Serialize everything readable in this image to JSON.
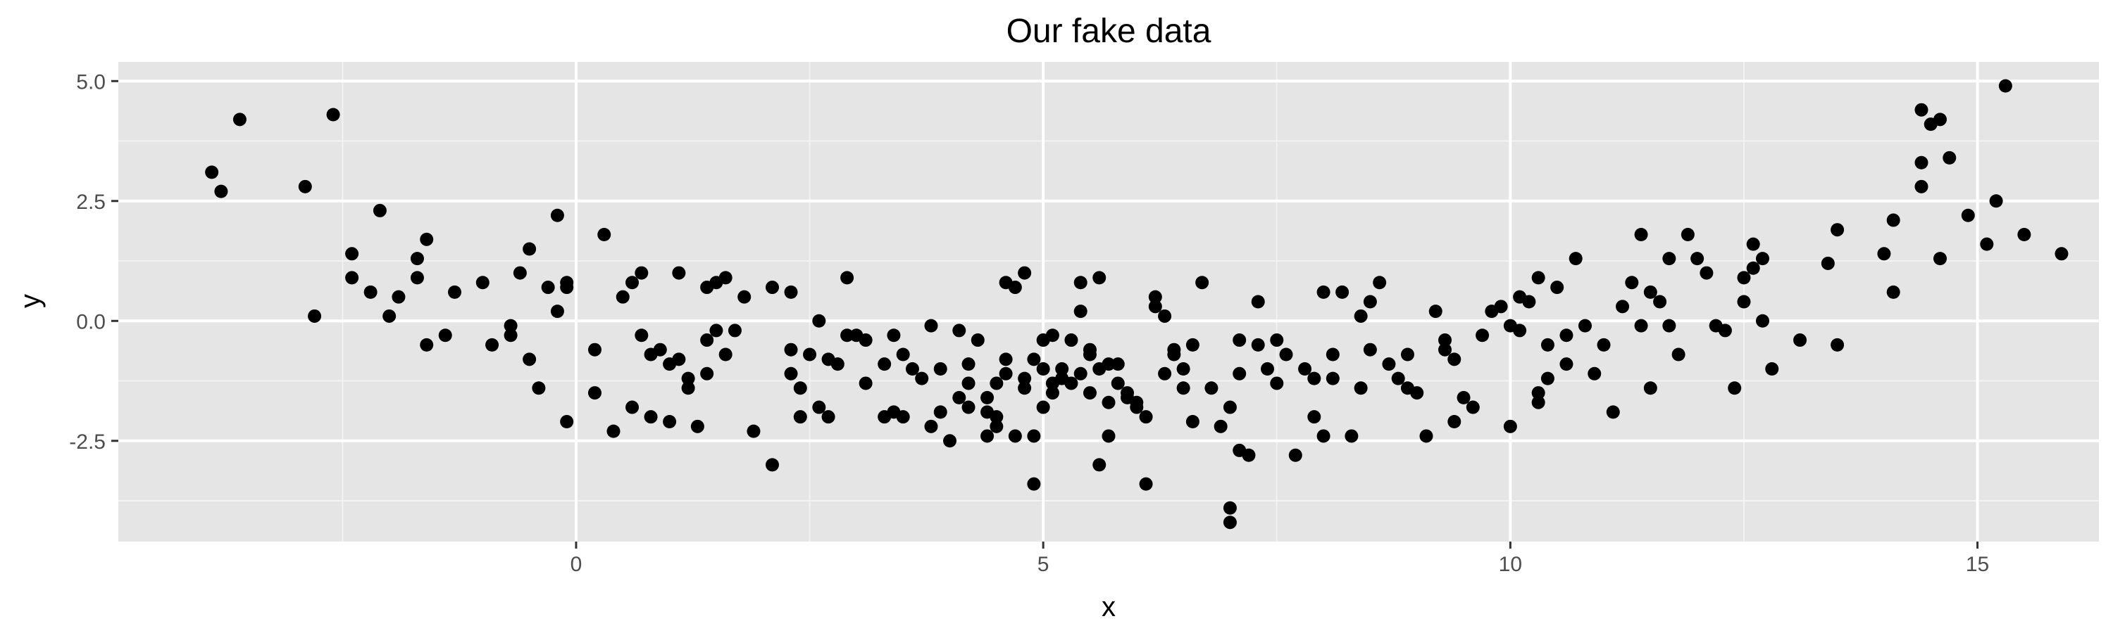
{
  "chart_data": {
    "type": "scatter",
    "title": "Our fake data",
    "xlabel": "x",
    "ylabel": "y",
    "xlim": [
      -4.9,
      16.3
    ],
    "ylim": [
      -4.6,
      5.4
    ],
    "x_major_ticks": [
      0,
      5,
      10,
      15
    ],
    "x_minor_ticks": [
      -2.5,
      2.5,
      7.5,
      12.5
    ],
    "y_major_ticks": [
      -2.5,
      0,
      2.5,
      5
    ],
    "y_minor_ticks": [
      -3.75,
      -1.25,
      1.25,
      3.75
    ],
    "x_tick_labels": [
      "0",
      "5",
      "10",
      "15"
    ],
    "y_tick_labels": [
      "-2.5",
      "0.0",
      "2.5",
      "5.0"
    ],
    "grid": true,
    "background_color": "#e5e5e5",
    "point_color": "#000000",
    "series": [
      {
        "points": [
          [
            -3.9,
            3.1
          ],
          [
            -3.8,
            2.7
          ],
          [
            -3.6,
            4.2
          ],
          [
            -2.9,
            2.8
          ],
          [
            -2.8,
            0.1
          ],
          [
            -2.6,
            4.3
          ],
          [
            -2.4,
            1.4
          ],
          [
            -2.4,
            0.9
          ],
          [
            -2.2,
            0.6
          ],
          [
            -2.1,
            2.3
          ],
          [
            -2.0,
            0.1
          ],
          [
            -1.9,
            0.5
          ],
          [
            -1.7,
            0.9
          ],
          [
            -1.7,
            1.3
          ],
          [
            -1.6,
            1.7
          ],
          [
            -1.6,
            -0.5
          ],
          [
            -1.4,
            -0.3
          ],
          [
            -1.3,
            0.6
          ],
          [
            -1.0,
            0.8
          ],
          [
            -0.9,
            -0.5
          ],
          [
            -0.7,
            -0.1
          ],
          [
            -0.7,
            -0.3
          ],
          [
            -0.6,
            1.0
          ],
          [
            -0.5,
            1.5
          ],
          [
            -0.5,
            -0.8
          ],
          [
            -0.4,
            -1.4
          ],
          [
            -0.3,
            0.7
          ],
          [
            -0.2,
            0.2
          ],
          [
            -0.2,
            2.2
          ],
          [
            -0.1,
            -2.1
          ],
          [
            -0.1,
            0.8
          ],
          [
            -0.1,
            0.7
          ],
          [
            0.2,
            -0.6
          ],
          [
            0.2,
            -1.5
          ],
          [
            0.3,
            1.8
          ],
          [
            0.4,
            -2.3
          ],
          [
            0.5,
            0.5
          ],
          [
            0.6,
            0.8
          ],
          [
            0.6,
            -1.8
          ],
          [
            0.7,
            1.0
          ],
          [
            0.7,
            -0.3
          ],
          [
            0.8,
            -0.7
          ],
          [
            0.8,
            -2.0
          ],
          [
            0.9,
            -0.6
          ],
          [
            1.0,
            -0.9
          ],
          [
            1.0,
            -2.1
          ],
          [
            1.1,
            -0.8
          ],
          [
            1.1,
            1.0
          ],
          [
            1.2,
            -1.2
          ],
          [
            1.2,
            -1.4
          ],
          [
            1.3,
            -2.2
          ],
          [
            1.4,
            0.7
          ],
          [
            1.4,
            -1.1
          ],
          [
            1.4,
            -0.4
          ],
          [
            1.5,
            0.8
          ],
          [
            1.5,
            -0.2
          ],
          [
            1.6,
            0.9
          ],
          [
            1.6,
            -0.7
          ],
          [
            1.7,
            -0.2
          ],
          [
            1.8,
            0.5
          ],
          [
            1.9,
            -2.3
          ],
          [
            2.1,
            0.7
          ],
          [
            2.1,
            -3.0
          ],
          [
            2.3,
            -0.6
          ],
          [
            2.3,
            0.6
          ],
          [
            2.3,
            -1.1
          ],
          [
            2.4,
            -1.4
          ],
          [
            2.4,
            -2.0
          ],
          [
            2.5,
            -0.7
          ],
          [
            2.6,
            -1.8
          ],
          [
            2.6,
            0.0
          ],
          [
            2.7,
            -2.0
          ],
          [
            2.7,
            -0.8
          ],
          [
            2.8,
            -0.9
          ],
          [
            2.9,
            0.9
          ],
          [
            2.9,
            -0.3
          ],
          [
            3.0,
            -0.3
          ],
          [
            3.1,
            -1.3
          ],
          [
            3.1,
            -0.4
          ],
          [
            3.3,
            -0.9
          ],
          [
            3.3,
            -2.0
          ],
          [
            3.4,
            -0.3
          ],
          [
            3.4,
            -1.9
          ],
          [
            3.5,
            -2.0
          ],
          [
            3.5,
            -0.7
          ],
          [
            3.6,
            -1.0
          ],
          [
            3.7,
            -1.2
          ],
          [
            3.8,
            -0.1
          ],
          [
            3.8,
            -2.2
          ],
          [
            3.9,
            -1.9
          ],
          [
            3.9,
            -1.0
          ],
          [
            4.0,
            -2.5
          ],
          [
            4.1,
            -1.6
          ],
          [
            4.1,
            -0.2
          ],
          [
            4.2,
            -1.8
          ],
          [
            4.2,
            -1.3
          ],
          [
            4.2,
            -0.9
          ],
          [
            4.3,
            -0.4
          ],
          [
            4.4,
            -1.9
          ],
          [
            4.4,
            -1.6
          ],
          [
            4.4,
            -2.4
          ],
          [
            4.5,
            -1.3
          ],
          [
            4.5,
            -2.0
          ],
          [
            4.5,
            -2.2
          ],
          [
            4.6,
            -1.1
          ],
          [
            4.6,
            -0.8
          ],
          [
            4.6,
            0.8
          ],
          [
            4.7,
            0.7
          ],
          [
            4.7,
            -2.4
          ],
          [
            4.8,
            -1.2
          ],
          [
            4.8,
            -1.4
          ],
          [
            4.8,
            1.0
          ],
          [
            4.9,
            -0.8
          ],
          [
            4.9,
            -2.4
          ],
          [
            4.9,
            -3.4
          ],
          [
            5.0,
            -0.4
          ],
          [
            5.0,
            -1.0
          ],
          [
            5.0,
            -1.8
          ],
          [
            5.1,
            -0.3
          ],
          [
            5.1,
            -1.3
          ],
          [
            5.1,
            -1.5
          ],
          [
            5.2,
            -1.0
          ],
          [
            5.2,
            -1.2
          ],
          [
            5.3,
            -0.4
          ],
          [
            5.3,
            -1.3
          ],
          [
            5.4,
            -1.1
          ],
          [
            5.4,
            0.8
          ],
          [
            5.4,
            0.2
          ],
          [
            5.5,
            -0.6
          ],
          [
            5.5,
            -0.7
          ],
          [
            5.5,
            -1.5
          ],
          [
            5.6,
            -3.0
          ],
          [
            5.6,
            0.9
          ],
          [
            5.6,
            -1.0
          ],
          [
            5.7,
            -0.9
          ],
          [
            5.7,
            -1.7
          ],
          [
            5.7,
            -2.4
          ],
          [
            5.8,
            -1.3
          ],
          [
            5.8,
            -0.9
          ],
          [
            5.9,
            -1.5
          ],
          [
            5.9,
            -1.6
          ],
          [
            6.0,
            -1.8
          ],
          [
            6.0,
            -1.7
          ],
          [
            6.1,
            -3.4
          ],
          [
            6.1,
            -2.0
          ],
          [
            6.2,
            0.5
          ],
          [
            6.2,
            0.3
          ],
          [
            6.3,
            0.1
          ],
          [
            6.3,
            -1.1
          ],
          [
            6.4,
            -0.7
          ],
          [
            6.4,
            -0.6
          ],
          [
            6.5,
            -1.4
          ],
          [
            6.5,
            -1.0
          ],
          [
            6.6,
            -0.5
          ],
          [
            6.6,
            -2.1
          ],
          [
            6.7,
            0.8
          ],
          [
            6.8,
            -1.4
          ],
          [
            6.9,
            -2.2
          ],
          [
            7.0,
            -4.2
          ],
          [
            7.0,
            -3.9
          ],
          [
            7.0,
            -1.8
          ],
          [
            7.1,
            -1.1
          ],
          [
            7.1,
            -2.7
          ],
          [
            7.1,
            -0.4
          ],
          [
            7.2,
            -2.8
          ],
          [
            7.3,
            -0.5
          ],
          [
            7.3,
            0.4
          ],
          [
            7.4,
            -1.0
          ],
          [
            7.5,
            -0.4
          ],
          [
            7.5,
            -1.3
          ],
          [
            7.6,
            -0.7
          ],
          [
            7.7,
            -2.8
          ],
          [
            7.8,
            -1.0
          ],
          [
            7.9,
            -1.2
          ],
          [
            7.9,
            -2.0
          ],
          [
            8.0,
            -2.4
          ],
          [
            8.0,
            0.6
          ],
          [
            8.1,
            -0.7
          ],
          [
            8.1,
            -1.2
          ],
          [
            8.2,
            0.6
          ],
          [
            8.3,
            -2.4
          ],
          [
            8.4,
            -1.4
          ],
          [
            8.4,
            0.1
          ],
          [
            8.5,
            0.4
          ],
          [
            8.5,
            -0.6
          ],
          [
            8.6,
            0.8
          ],
          [
            8.7,
            -0.9
          ],
          [
            8.8,
            -1.2
          ],
          [
            8.9,
            -0.7
          ],
          [
            8.9,
            -1.4
          ],
          [
            9.0,
            -1.5
          ],
          [
            9.1,
            -2.4
          ],
          [
            9.2,
            0.2
          ],
          [
            9.3,
            -0.6
          ],
          [
            9.3,
            -0.4
          ],
          [
            9.4,
            -0.8
          ],
          [
            9.4,
            -2.1
          ],
          [
            9.5,
            -1.6
          ],
          [
            9.6,
            -1.8
          ],
          [
            9.7,
            -0.3
          ],
          [
            9.8,
            0.2
          ],
          [
            9.9,
            0.3
          ],
          [
            10.0,
            -2.2
          ],
          [
            10.0,
            -0.1
          ],
          [
            10.1,
            -0.2
          ],
          [
            10.1,
            0.5
          ],
          [
            10.2,
            0.4
          ],
          [
            10.3,
            -1.7
          ],
          [
            10.3,
            -1.5
          ],
          [
            10.3,
            0.9
          ],
          [
            10.4,
            -1.2
          ],
          [
            10.4,
            -0.5
          ],
          [
            10.5,
            0.7
          ],
          [
            10.6,
            -0.9
          ],
          [
            10.6,
            -0.3
          ],
          [
            10.7,
            1.3
          ],
          [
            10.8,
            -0.1
          ],
          [
            10.9,
            -1.1
          ],
          [
            11.0,
            -0.5
          ],
          [
            11.1,
            -1.9
          ],
          [
            11.2,
            0.3
          ],
          [
            11.3,
            0.8
          ],
          [
            11.4,
            -0.1
          ],
          [
            11.4,
            1.8
          ],
          [
            11.5,
            -1.4
          ],
          [
            11.5,
            0.6
          ],
          [
            11.6,
            0.4
          ],
          [
            11.7,
            1.3
          ],
          [
            11.7,
            -0.1
          ],
          [
            11.8,
            -0.7
          ],
          [
            11.9,
            1.8
          ],
          [
            12.0,
            1.3
          ],
          [
            12.1,
            1.0
          ],
          [
            12.2,
            -0.1
          ],
          [
            12.3,
            -0.2
          ],
          [
            12.4,
            -1.4
          ],
          [
            12.5,
            0.4
          ],
          [
            12.5,
            0.9
          ],
          [
            12.6,
            1.1
          ],
          [
            12.6,
            1.6
          ],
          [
            12.7,
            0.0
          ],
          [
            12.7,
            1.3
          ],
          [
            12.8,
            -1.0
          ],
          [
            13.1,
            -0.4
          ],
          [
            13.4,
            1.2
          ],
          [
            13.5,
            1.9
          ],
          [
            13.5,
            -0.5
          ],
          [
            14.0,
            1.4
          ],
          [
            14.1,
            2.1
          ],
          [
            14.1,
            0.6
          ],
          [
            14.4,
            2.8
          ],
          [
            14.6,
            1.3
          ],
          [
            14.9,
            2.2
          ],
          [
            15.1,
            1.6
          ],
          [
            15.2,
            2.5
          ],
          [
            15.5,
            1.8
          ],
          [
            15.9,
            1.4
          ],
          [
            14.4,
            4.4
          ],
          [
            14.4,
            3.3
          ],
          [
            14.5,
            4.1
          ],
          [
            14.6,
            4.2
          ],
          [
            14.7,
            3.4
          ],
          [
            15.3,
            4.9
          ]
        ]
      }
    ]
  }
}
